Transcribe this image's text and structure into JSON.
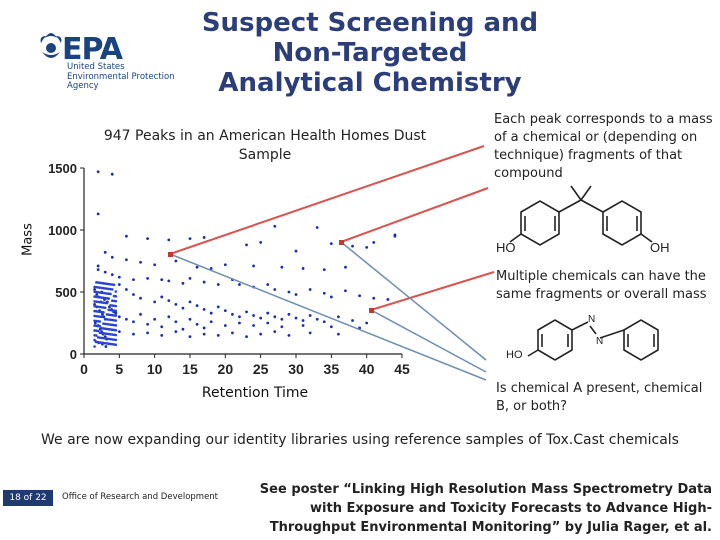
{
  "slide": {
    "title": "Suspect Screening and Non-Targeted Analytical Chemistry",
    "logo": {
      "word": "EPA",
      "lines": [
        "United States",
        "Environmental Protection",
        "Agency"
      ]
    },
    "notes": [
      "Each peak corresponds to a mass of a chemical or (depending on technique) fragments of that compound",
      "Multiple chemicals can have the same fragments or overall mass",
      "Is chemical A present, chemical B, or both?"
    ],
    "structure_labels": {
      "ho1": "HO",
      "oh1": "OH",
      "ho2": "HO",
      "n1": "N",
      "n2": "N"
    },
    "expanding_text": "We are now expanding our identity libraries using reference samples of Tox.Cast chemicals",
    "page": "18 of 22",
    "office": "Office of Research and Development",
    "poster": "See poster “Linking High Resolution Mass Spectrometry Data with Exposure and Toxicity Forecasts to Advance High-Throughput Environmental Monitoring” by Julia Rager, et al."
  },
  "chart_data": {
    "type": "scatter",
    "title": "947 Peaks in an American Health Homes Dust Sample",
    "xlabel": "Retention Time",
    "ylabel": "Mass",
    "xlim": [
      0,
      45
    ],
    "ylim": [
      0,
      1500
    ],
    "x_ticks": [
      "0",
      "5",
      "10",
      "15",
      "20",
      "25",
      "30",
      "35",
      "40",
      "45"
    ],
    "y_ticks": [
      "0",
      "500",
      "1000",
      "1500"
    ],
    "grid": false,
    "series": [
      {
        "color": "#1a2fb0",
        "points": [
          [
            2,
            1470
          ],
          [
            2,
            1130
          ],
          [
            4,
            1450
          ],
          [
            27,
            1030
          ],
          [
            33,
            1020
          ],
          [
            41,
            900
          ],
          [
            44,
            960
          ],
          [
            44,
            950
          ],
          [
            6,
            950
          ],
          [
            9,
            930
          ],
          [
            12,
            920
          ],
          [
            15,
            930
          ],
          [
            17,
            940
          ],
          [
            23,
            880
          ],
          [
            25,
            900
          ],
          [
            30,
            830
          ],
          [
            35,
            890
          ],
          [
            38,
            870
          ],
          [
            40,
            860
          ],
          [
            3,
            820
          ],
          [
            4,
            780
          ],
          [
            6,
            760
          ],
          [
            8,
            740
          ],
          [
            10,
            720
          ],
          [
            13,
            750
          ],
          [
            16,
            700
          ],
          [
            18,
            690
          ],
          [
            20,
            720
          ],
          [
            24,
            710
          ],
          [
            28,
            700
          ],
          [
            31,
            690
          ],
          [
            34,
            680
          ],
          [
            37,
            700
          ],
          [
            2,
            710
          ],
          [
            2,
            680
          ],
          [
            3,
            660
          ],
          [
            4,
            640
          ],
          [
            5,
            620
          ],
          [
            7,
            600
          ],
          [
            9,
            610
          ],
          [
            11,
            600
          ],
          [
            12,
            590
          ],
          [
            14,
            570
          ],
          [
            15,
            610
          ],
          [
            17,
            580
          ],
          [
            19,
            560
          ],
          [
            21,
            600
          ],
          [
            22,
            560
          ],
          [
            24,
            540
          ],
          [
            26,
            560
          ],
          [
            27,
            520
          ],
          [
            29,
            500
          ],
          [
            30,
            480
          ],
          [
            32,
            520
          ],
          [
            34,
            490
          ],
          [
            35,
            460
          ],
          [
            37,
            510
          ],
          [
            39,
            470
          ],
          [
            41,
            450
          ],
          [
            43,
            440
          ],
          [
            5,
            560
          ],
          [
            6,
            520
          ],
          [
            7,
            480
          ],
          [
            8,
            450
          ],
          [
            10,
            420
          ],
          [
            11,
            460
          ],
          [
            12,
            430
          ],
          [
            13,
            400
          ],
          [
            14,
            370
          ],
          [
            15,
            420
          ],
          [
            16,
            390
          ],
          [
            17,
            360
          ],
          [
            18,
            330
          ],
          [
            19,
            380
          ],
          [
            20,
            350
          ],
          [
            21,
            320
          ],
          [
            22,
            300
          ],
          [
            23,
            340
          ],
          [
            24,
            310
          ],
          [
            25,
            290
          ],
          [
            26,
            330
          ],
          [
            27,
            300
          ],
          [
            28,
            280
          ],
          [
            29,
            320
          ],
          [
            30,
            290
          ],
          [
            31,
            270
          ],
          [
            32,
            310
          ],
          [
            33,
            280
          ],
          [
            34,
            260
          ],
          [
            36,
            300
          ],
          [
            38,
            270
          ],
          [
            40,
            250
          ],
          [
            5,
            300
          ],
          [
            6,
            280
          ],
          [
            7,
            260
          ],
          [
            8,
            320
          ],
          [
            9,
            240
          ],
          [
            10,
            280
          ],
          [
            11,
            220
          ],
          [
            12,
            300
          ],
          [
            13,
            260
          ],
          [
            14,
            200
          ],
          [
            15,
            280
          ],
          [
            16,
            240
          ],
          [
            17,
            210
          ],
          [
            18,
            260
          ],
          [
            20,
            230
          ],
          [
            22,
            250
          ],
          [
            24,
            230
          ],
          [
            26,
            250
          ],
          [
            28,
            220
          ],
          [
            31,
            230
          ],
          [
            35,
            220
          ],
          [
            39,
            210
          ],
          [
            5,
            180
          ],
          [
            7,
            160
          ],
          [
            9,
            170
          ],
          [
            11,
            150
          ],
          [
            13,
            180
          ],
          [
            15,
            140
          ],
          [
            17,
            160
          ],
          [
            19,
            150
          ],
          [
            21,
            170
          ],
          [
            23,
            140
          ],
          [
            25,
            160
          ],
          [
            27,
            180
          ],
          [
            29,
            150
          ],
          [
            32,
            170
          ],
          [
            36,
            160
          ],
          [
            1.5,
            400
          ],
          [
            1.8,
            380
          ],
          [
            2.2,
            350
          ],
          [
            2.4,
            420
          ],
          [
            2.6,
            320
          ],
          [
            2.8,
            300
          ],
          [
            3,
            280
          ],
          [
            1.6,
            250
          ],
          [
            2.0,
            230
          ],
          [
            2.3,
            200
          ],
          [
            2.5,
            180
          ],
          [
            2.7,
            160
          ],
          [
            3.0,
            140
          ],
          [
            3.2,
            120
          ],
          [
            1.7,
            100
          ],
          [
            2.1,
            90
          ],
          [
            2.6,
            80
          ],
          [
            3.1,
            60
          ],
          [
            1.5,
            520
          ],
          [
            1.8,
            480
          ],
          [
            2.1,
            460
          ],
          [
            2.5,
            500
          ],
          [
            2.9,
            440
          ],
          [
            3.3,
            420
          ],
          [
            3.6,
            380
          ],
          [
            3.9,
            360
          ],
          [
            4.2,
            340
          ],
          [
            4.5,
            330
          ]
        ]
      }
    ]
  }
}
